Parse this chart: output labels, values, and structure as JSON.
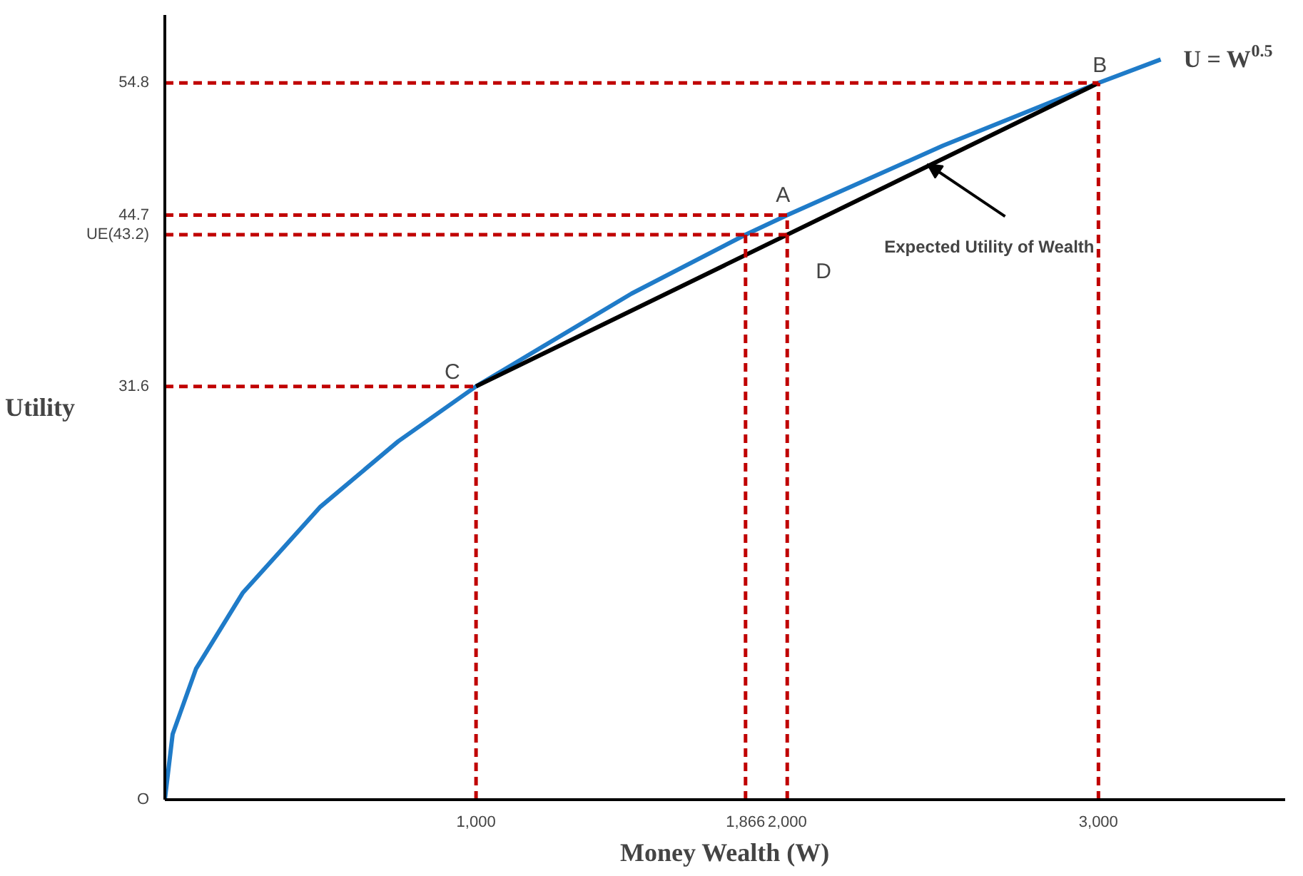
{
  "chart_data": {
    "type": "line",
    "xlabel": "Money Wealth (W)",
    "ylabel": "Utility",
    "xlim": [
      0,
      3600
    ],
    "ylim": [
      0,
      60
    ],
    "xticks": [
      {
        "value": 1000,
        "label": "1,000"
      },
      {
        "value": 1866,
        "label": "1,866"
      },
      {
        "value": 2000,
        "label": "2,000"
      },
      {
        "value": 3000,
        "label": "3,000"
      }
    ],
    "yticks": [
      {
        "value": 0,
        "label": "O"
      },
      31.6,
      {
        "value": 43.2,
        "label": "UE(43.2)"
      },
      44.7,
      54.8
    ],
    "grid": false,
    "marker": "none",
    "series": [
      {
        "color": "#1f7bc8",
        "x": [
          0,
          25,
          100,
          250,
          500,
          750,
          1000,
          1500,
          1866,
          2000,
          2500,
          3000,
          3200
        ],
        "values": [
          0,
          5,
          10,
          15.8,
          22.4,
          27.4,
          31.6,
          38.7,
          43.2,
          44.7,
          50,
          54.8,
          56.6
        ]
      },
      {
        "color": "#000000",
        "x": [
          1000,
          3000
        ],
        "values": [
          31.6,
          54.8
        ]
      },
      {
        "color": "#c00000",
        "line_style": "dashed",
        "x": [
          1000,
          1000
        ],
        "values": [
          0,
          31.6
        ]
      },
      {
        "color": "#c00000",
        "line_style": "dashed",
        "x": [
          1866,
          1866
        ],
        "values": [
          0,
          43.2
        ]
      },
      {
        "color": "#c00000",
        "line_style": "dashed",
        "x": [
          2000,
          2000
        ],
        "values": [
          0,
          44.7
        ]
      },
      {
        "color": "#c00000",
        "line_style": "dashed",
        "x": [
          3000,
          3000
        ],
        "values": [
          0,
          54.8
        ]
      },
      {
        "color": "#c00000",
        "line_style": "dashed",
        "x": [
          0,
          1000
        ],
        "values": [
          31.6,
          31.6
        ]
      },
      {
        "color": "#c00000",
        "line_style": "dashed",
        "x": [
          0,
          2000
        ],
        "values": [
          43.2,
          43.2
        ]
      },
      {
        "color": "#c00000",
        "line_style": "dashed",
        "x": [
          0,
          2000
        ],
        "values": [
          44.7,
          44.7
        ]
      },
      {
        "color": "#c00000",
        "line_style": "dashed",
        "x": [
          0,
          3000
        ],
        "values": [
          54.8,
          54.8
        ]
      }
    ],
    "annotations": [
      {
        "text": "A",
        "x": 2000,
        "y": 44.7
      },
      {
        "text": "B",
        "x": 3000,
        "y": 54.8
      },
      {
        "text": "C",
        "x": 1000,
        "y": 31.6
      },
      {
        "text": "D",
        "x": 2000,
        "y": 43.2
      },
      {
        "text": "Expected Utility of Wealth",
        "x": 2450,
        "y": 48.6
      },
      {
        "text": "U = W$^{0.5}$",
        "x": 3200,
        "y": 56.6
      }
    ]
  }
}
